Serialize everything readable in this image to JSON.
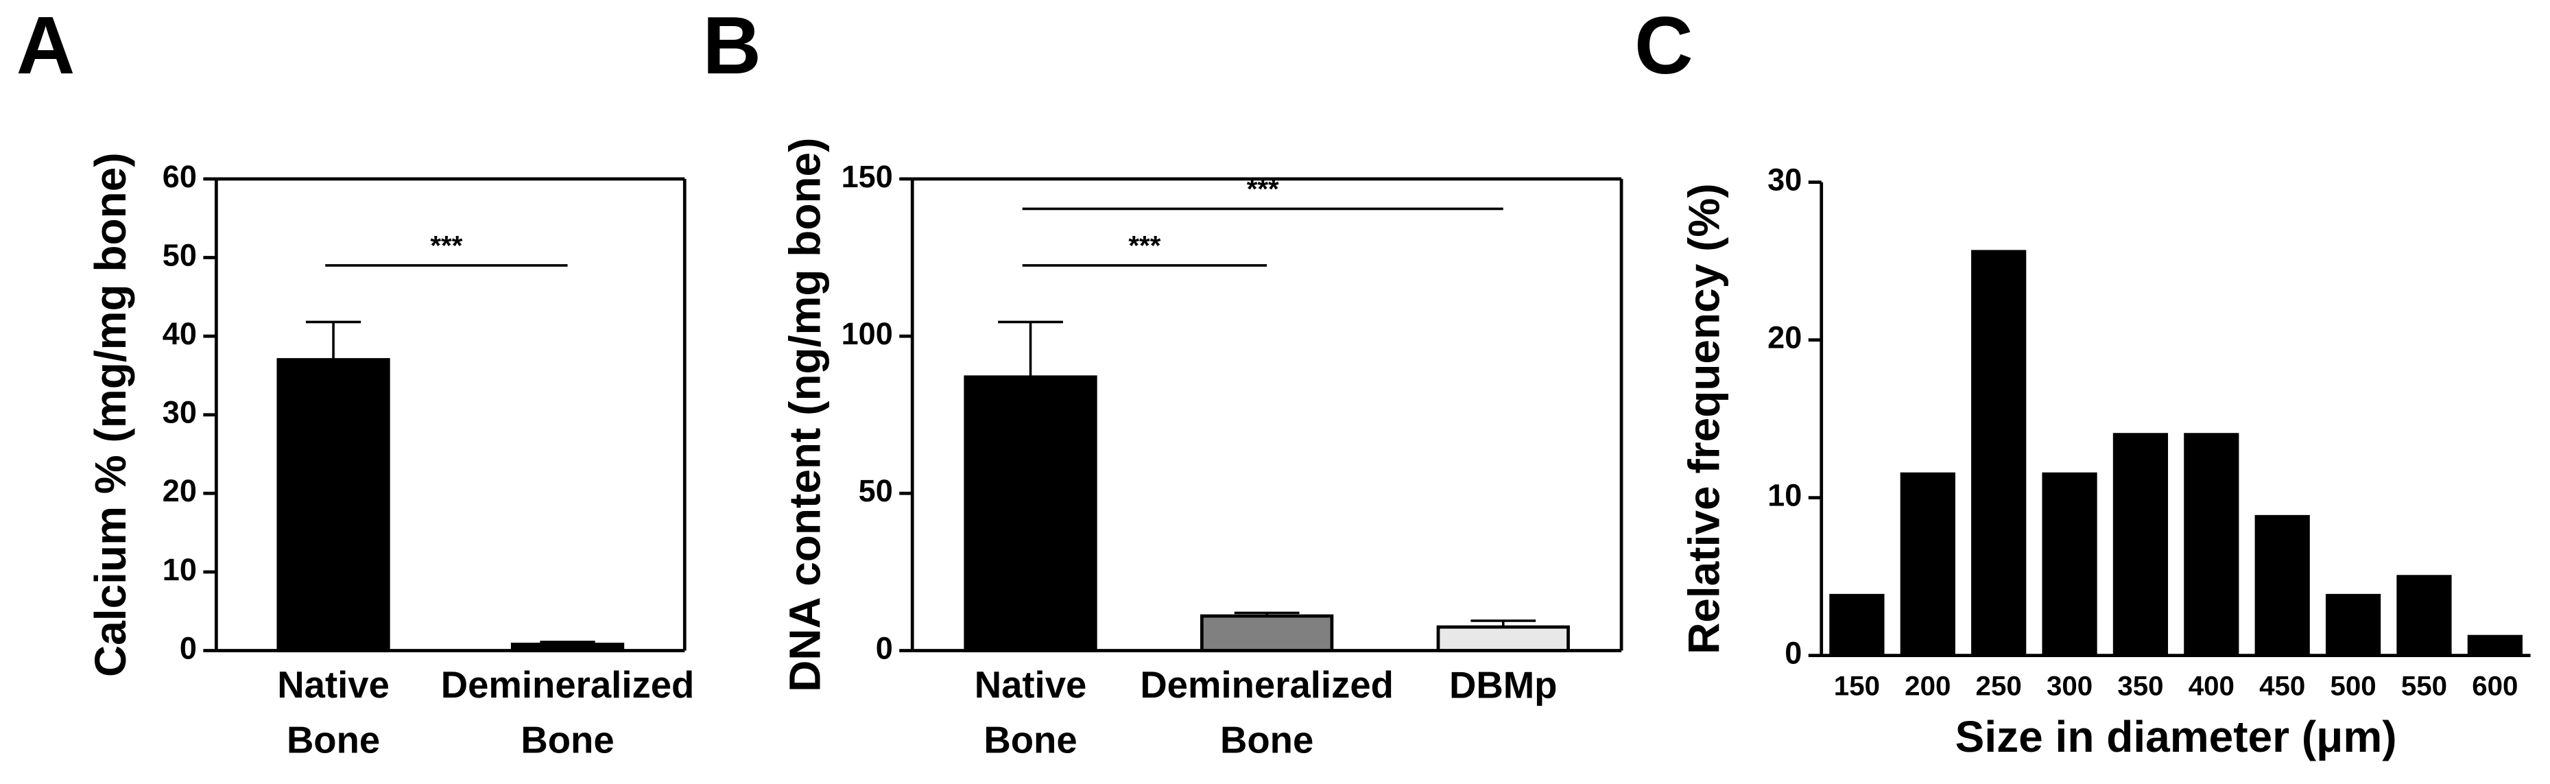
{
  "chart_data": [
    {
      "type": "bar",
      "panel_label": "A",
      "ylabel": "Calcium % (mg/mg bone)",
      "categories": [
        "Native Bone",
        "Demineralized Bone"
      ],
      "values": [
        37,
        0.8
      ],
      "errors": [
        4.8,
        0.3
      ],
      "colors": [
        "#000000",
        "#000000"
      ],
      "ylim": [
        0,
        60
      ],
      "yticks": [
        0,
        10,
        20,
        30,
        40,
        50,
        60
      ],
      "significance": [
        {
          "label": "***",
          "between": [
            0,
            1
          ]
        }
      ]
    },
    {
      "type": "bar",
      "panel_label": "B",
      "ylabel": "DNA content (ng/mg bone)",
      "categories": [
        "Native Bone",
        "Demineralized Bone",
        "DBMp"
      ],
      "values": [
        87,
        11,
        7.5
      ],
      "errors": [
        17.5,
        1,
        2
      ],
      "colors": [
        "#000000",
        "#808080",
        "#e8e8e8"
      ],
      "ylim": [
        0,
        150
      ],
      "yticks": [
        0,
        50,
        100,
        150
      ],
      "significance": [
        {
          "label": "***",
          "between": [
            0,
            1
          ]
        },
        {
          "label": "***",
          "between": [
            0,
            2
          ]
        }
      ]
    },
    {
      "type": "bar",
      "panel_label": "C",
      "ylabel": "Relative frequency (%)",
      "xlabel": "Size in diameter (μm)",
      "categories": [
        "150",
        "200",
        "250",
        "300",
        "350",
        "400",
        "450",
        "500",
        "550",
        "600"
      ],
      "values": [
        3.8,
        11.5,
        25.6,
        11.5,
        14,
        14,
        8.8,
        3.8,
        5,
        1.2
      ],
      "colors": [
        "#000000",
        "#000000",
        "#000000",
        "#000000",
        "#000000",
        "#000000",
        "#000000",
        "#000000",
        "#000000",
        "#000000"
      ],
      "ylim": [
        0,
        30
      ],
      "yticks": [
        0,
        10,
        20,
        30
      ]
    }
  ]
}
